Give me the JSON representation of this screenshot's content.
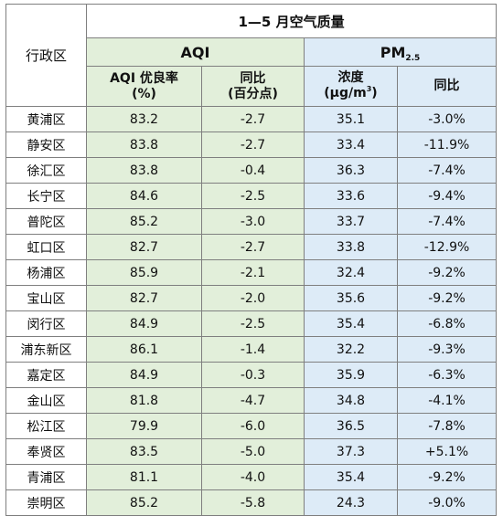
{
  "title": "1—5 月空气质量",
  "district_header": "行政区",
  "groups": {
    "aqi": "AQI",
    "pm_main": "PM",
    "pm_sub": "2.5"
  },
  "subheaders": {
    "aqi_rate_line1": "AQI 优良率",
    "aqi_rate_line2": "(%)",
    "aqi_yoy_line1": "同比",
    "aqi_yoy_line2": "(百分点)",
    "pm_conc_line1": "浓度",
    "pm_conc_line2_pre": "(μg/m",
    "pm_conc_line2_sup": "3",
    "pm_conc_line2_post": ")",
    "pm_yoy": "同比"
  },
  "rows": [
    {
      "district": "黄浦区",
      "aqi_rate": "83.2",
      "aqi_yoy": "-2.7",
      "pm_conc": "35.1",
      "pm_yoy": "-3.0%"
    },
    {
      "district": "静安区",
      "aqi_rate": "83.8",
      "aqi_yoy": "-2.7",
      "pm_conc": "33.4",
      "pm_yoy": "-11.9%"
    },
    {
      "district": "徐汇区",
      "aqi_rate": "83.8",
      "aqi_yoy": "-0.4",
      "pm_conc": "36.3",
      "pm_yoy": "-7.4%"
    },
    {
      "district": "长宁区",
      "aqi_rate": "84.6",
      "aqi_yoy": "-2.5",
      "pm_conc": "33.6",
      "pm_yoy": "-9.4%"
    },
    {
      "district": "普陀区",
      "aqi_rate": "85.2",
      "aqi_yoy": "-3.0",
      "pm_conc": "33.7",
      "pm_yoy": "-7.4%"
    },
    {
      "district": "虹口区",
      "aqi_rate": "82.7",
      "aqi_yoy": "-2.7",
      "pm_conc": "33.8",
      "pm_yoy": "-12.9%"
    },
    {
      "district": "杨浦区",
      "aqi_rate": "85.9",
      "aqi_yoy": "-2.1",
      "pm_conc": "32.4",
      "pm_yoy": "-9.2%"
    },
    {
      "district": "宝山区",
      "aqi_rate": "82.7",
      "aqi_yoy": "-2.0",
      "pm_conc": "35.6",
      "pm_yoy": "-9.2%"
    },
    {
      "district": "闵行区",
      "aqi_rate": "84.9",
      "aqi_yoy": "-2.5",
      "pm_conc": "35.4",
      "pm_yoy": "-6.8%"
    },
    {
      "district": "浦东新区",
      "aqi_rate": "86.1",
      "aqi_yoy": "-1.4",
      "pm_conc": "32.2",
      "pm_yoy": "-9.3%"
    },
    {
      "district": "嘉定区",
      "aqi_rate": "84.9",
      "aqi_yoy": "-0.3",
      "pm_conc": "35.9",
      "pm_yoy": "-6.3%"
    },
    {
      "district": "金山区",
      "aqi_rate": "81.8",
      "aqi_yoy": "-4.7",
      "pm_conc": "34.8",
      "pm_yoy": "-4.1%"
    },
    {
      "district": "松江区",
      "aqi_rate": "79.9",
      "aqi_yoy": "-6.0",
      "pm_conc": "36.5",
      "pm_yoy": "-7.8%"
    },
    {
      "district": "奉贤区",
      "aqi_rate": "83.5",
      "aqi_yoy": "-5.0",
      "pm_conc": "37.3",
      "pm_yoy": "+5.1%"
    },
    {
      "district": "青浦区",
      "aqi_rate": "81.1",
      "aqi_yoy": "-4.0",
      "pm_conc": "35.4",
      "pm_yoy": "-9.2%"
    },
    {
      "district": "崇明区",
      "aqi_rate": "85.2",
      "aqi_yoy": "-5.8",
      "pm_conc": "24.3",
      "pm_yoy": "-9.0%"
    }
  ],
  "colors": {
    "aqi_fill": "#e2efda",
    "pm_fill": "#ddebf7",
    "border": "#7f7f7f"
  }
}
